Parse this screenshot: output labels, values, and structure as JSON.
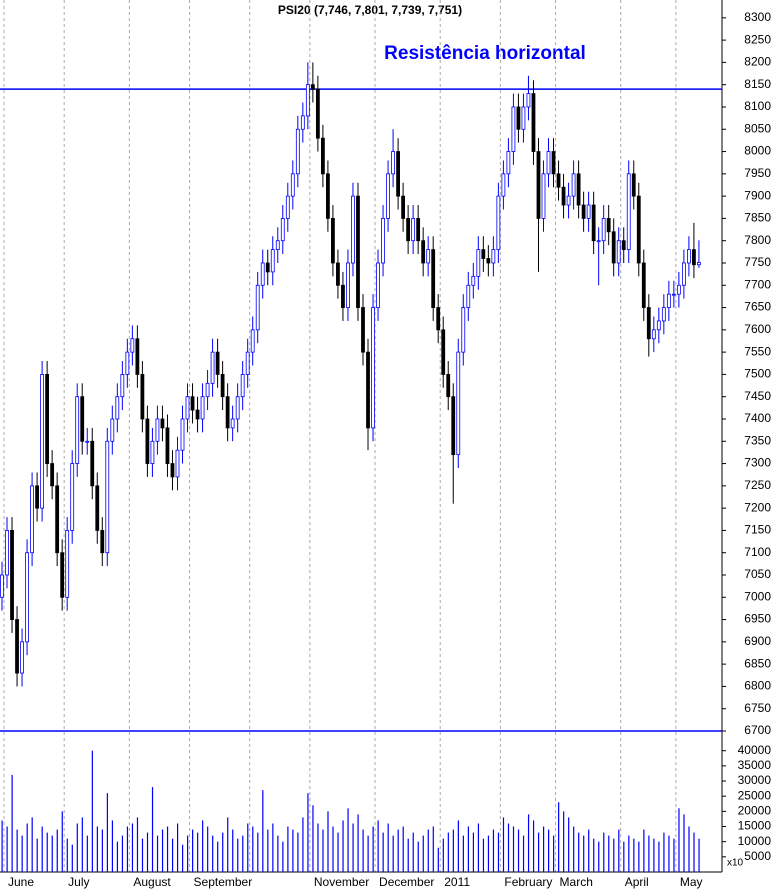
{
  "chart_data": {
    "type": "candlestick",
    "title": "PSI20 (7,746, 7,801, 7,739, 7,751)",
    "annotation": "Resistência horizontal",
    "up_color": "#0000ff",
    "down_color": "#000000",
    "open": [
      7000,
      7050,
      7150,
      6950,
      6830,
      6900,
      7100,
      7250,
      7200,
      7500,
      7300,
      7250,
      7100,
      7000,
      7150,
      7300,
      7450,
      7350,
      7350,
      7250,
      7150,
      7100,
      7350,
      7400,
      7450,
      7500,
      7550,
      7580,
      7500,
      7400,
      7300,
      7350,
      7400,
      7380,
      7300,
      7270,
      7330,
      7400,
      7450,
      7420,
      7400,
      7450,
      7480,
      7550,
      7500,
      7450,
      7380,
      7400,
      7450,
      7500,
      7550,
      7600,
      7700,
      7750,
      7730,
      7780,
      7800,
      7850,
      7900,
      7950,
      8050,
      8080,
      8150,
      8140,
      8030,
      7950,
      7850,
      7750,
      7700,
      7650,
      7750,
      7900,
      7650,
      7550,
      7380,
      7650,
      7750,
      7850,
      7950,
      8000,
      7900,
      7850,
      7800,
      7850,
      7800,
      7750,
      7780,
      7650,
      7600,
      7500,
      7450,
      7320,
      7550,
      7650,
      7700,
      7720,
      7780,
      7760,
      7750,
      7780,
      7900,
      7950,
      8000,
      8100,
      8050,
      8100,
      8130,
      8000,
      7850,
      7950,
      8000,
      7950,
      7920,
      7880,
      7900,
      7950,
      7880,
      7850,
      7880,
      7800,
      7800,
      7850,
      7820,
      7750,
      7800,
      7780,
      7950,
      7900,
      7750,
      7650,
      7580,
      7600,
      7620,
      7650,
      7680,
      7680,
      7700,
      7750,
      7780,
      7746
    ],
    "high": [
      7080,
      7180,
      7180,
      6980,
      6930,
      7130,
      7280,
      7280,
      7530,
      7530,
      7330,
      7280,
      7130,
      7180,
      7330,
      7480,
      7480,
      7380,
      7380,
      7280,
      7180,
      7380,
      7430,
      7480,
      7530,
      7580,
      7610,
      7610,
      7530,
      7430,
      7380,
      7430,
      7430,
      7410,
      7330,
      7360,
      7430,
      7480,
      7480,
      7450,
      7480,
      7510,
      7580,
      7580,
      7530,
      7480,
      7430,
      7480,
      7530,
      7580,
      7630,
      7730,
      7780,
      7780,
      7810,
      7830,
      7880,
      7930,
      7980,
      8080,
      8110,
      8200,
      8200,
      8170,
      8060,
      7980,
      7880,
      7780,
      7730,
      7780,
      7930,
      7930,
      7680,
      7580,
      7680,
      7780,
      7880,
      7980,
      8050,
      8030,
      7930,
      7880,
      7880,
      7880,
      7830,
      7810,
      7810,
      7680,
      7630,
      7530,
      7480,
      7580,
      7680,
      7730,
      7750,
      7810,
      7810,
      7790,
      7810,
      7930,
      7980,
      8030,
      8130,
      8130,
      8130,
      8170,
      8160,
      8030,
      7980,
      8030,
      8030,
      7980,
      7950,
      7930,
      7980,
      7980,
      7910,
      7910,
      7910,
      7830,
      7880,
      7880,
      7850,
      7830,
      7830,
      7980,
      7980,
      7930,
      7780,
      7680,
      7630,
      7650,
      7680,
      7710,
      7710,
      7730,
      7780,
      7810,
      7840,
      7801
    ],
    "low": [
      6970,
      7020,
      6920,
      6800,
      6800,
      6870,
      7070,
      7170,
      7170,
      7270,
      7220,
      7070,
      6970,
      6970,
      7120,
      7270,
      7320,
      7320,
      7220,
      7120,
      7070,
      7070,
      7320,
      7370,
      7420,
      7470,
      7520,
      7470,
      7370,
      7270,
      7270,
      7320,
      7350,
      7270,
      7240,
      7240,
      7300,
      7370,
      7390,
      7370,
      7370,
      7420,
      7450,
      7470,
      7420,
      7350,
      7350,
      7370,
      7420,
      7470,
      7520,
      7570,
      7670,
      7700,
      7700,
      7750,
      7770,
      7820,
      7870,
      7920,
      8020,
      8050,
      8110,
      8000,
      7920,
      7820,
      7720,
      7670,
      7620,
      7620,
      7720,
      7620,
      7520,
      7330,
      7350,
      7620,
      7720,
      7820,
      7920,
      7870,
      7820,
      7770,
      7770,
      7770,
      7720,
      7720,
      7620,
      7570,
      7470,
      7420,
      7210,
      7290,
      7520,
      7620,
      7670,
      7690,
      7730,
      7720,
      7720,
      7750,
      7870,
      7920,
      7970,
      8020,
      8020,
      8070,
      7970,
      7730,
      7820,
      7920,
      7920,
      7890,
      7850,
      7850,
      7870,
      7850,
      7820,
      7820,
      7770,
      7700,
      7770,
      7790,
      7720,
      7720,
      7750,
      7750,
      7870,
      7720,
      7620,
      7540,
      7550,
      7570,
      7590,
      7620,
      7650,
      7650,
      7670,
      7720,
      7716,
      7739
    ],
    "close": [
      7050,
      7150,
      6950,
      6830,
      6900,
      7100,
      7250,
      7200,
      7500,
      7300,
      7250,
      7100,
      7000,
      7150,
      7300,
      7450,
      7350,
      7350,
      7250,
      7150,
      7100,
      7350,
      7400,
      7450,
      7500,
      7550,
      7580,
      7500,
      7400,
      7300,
      7350,
      7400,
      7380,
      7300,
      7270,
      7330,
      7400,
      7450,
      7420,
      7400,
      7450,
      7480,
      7550,
      7500,
      7450,
      7380,
      7400,
      7450,
      7500,
      7550,
      7600,
      7700,
      7750,
      7730,
      7780,
      7800,
      7850,
      7900,
      7950,
      8050,
      8080,
      8150,
      8140,
      8030,
      7950,
      7850,
      7750,
      7700,
      7650,
      7750,
      7900,
      7650,
      7550,
      7380,
      7650,
      7750,
      7850,
      7950,
      8000,
      7900,
      7850,
      7800,
      7850,
      7800,
      7750,
      7780,
      7650,
      7600,
      7500,
      7450,
      7320,
      7550,
      7650,
      7700,
      7720,
      7780,
      7760,
      7750,
      7780,
      7900,
      7950,
      8000,
      8100,
      8050,
      8100,
      8130,
      8000,
      7850,
      7950,
      8000,
      7950,
      7920,
      7880,
      7900,
      7950,
      7880,
      7850,
      7880,
      7800,
      7800,
      7850,
      7820,
      7750,
      7800,
      7780,
      7950,
      7900,
      7750,
      7650,
      7580,
      7600,
      7620,
      7650,
      7680,
      7680,
      7700,
      7750,
      7780,
      7746,
      7751
    ],
    "volume": [
      17000,
      15000,
      32000,
      14000,
      12000,
      16000,
      18000,
      11000,
      15000,
      13000,
      12000,
      14000,
      20000,
      11000,
      9000,
      16000,
      18000,
      12000,
      40000,
      15000,
      14000,
      26000,
      17000,
      10000,
      12000,
      15000,
      16000,
      18000,
      11000,
      13000,
      28000,
      12000,
      14000,
      15000,
      11000,
      16000,
      9000,
      12000,
      14000,
      13000,
      17000,
      15000,
      12000,
      10000,
      13000,
      18000,
      14000,
      11000,
      12000,
      16000,
      15000,
      13000,
      27000,
      14000,
      16000,
      12000,
      10000,
      15000,
      14000,
      13000,
      18000,
      26000,
      22000,
      16000,
      14000,
      20000,
      15000,
      13000,
      17000,
      21000,
      16000,
      19000,
      14000,
      12000,
      15000,
      17000,
      13000,
      16000,
      12000,
      14000,
      15000,
      11000,
      13000,
      10000,
      12000,
      14000,
      15000,
      8000,
      11000,
      13000,
      14000,
      17000,
      12000,
      15000,
      13000,
      16000,
      11000,
      12000,
      14000,
      13000,
      18000,
      16000,
      15000,
      14000,
      12000,
      19000,
      17000,
      13000,
      15000,
      14000,
      12000,
      23000,
      20000,
      18000,
      15000,
      13000,
      12000,
      14000,
      11000,
      10000,
      13000,
      12000,
      11000,
      14000,
      10000,
      12000,
      11000,
      10000,
      14000,
      12000,
      11000,
      10000,
      13000,
      12000,
      11000,
      21000,
      19000,
      15000,
      13000,
      11000
    ],
    "volume_color": "#0000ff",
    "volume_unit_label": "x10",
    "hlines": [
      8140,
      6700
    ],
    "hline_color": "#0000ff",
    "ylim": [
      6700,
      8340
    ],
    "yticks": [
      6700,
      6750,
      6800,
      6850,
      6900,
      6950,
      7000,
      7050,
      7100,
      7150,
      7200,
      7250,
      7300,
      7350,
      7400,
      7450,
      7500,
      7550,
      7600,
      7650,
      7700,
      7750,
      7800,
      7850,
      7900,
      7950,
      8000,
      8050,
      8100,
      8150,
      8200,
      8250,
      8300
    ],
    "vlim": [
      0,
      46500
    ],
    "vticks": [
      5000,
      10000,
      15000,
      20000,
      25000,
      30000,
      35000,
      40000
    ],
    "xlim": [
      0,
      144
    ],
    "xticks": [
      {
        "value": 1,
        "label": "June"
      },
      {
        "value": 13,
        "label": "July"
      },
      {
        "value": 26,
        "label": "August"
      },
      {
        "value": 38,
        "label": "September"
      },
      {
        "value": 50,
        "label": null
      },
      {
        "value": 62,
        "label": "November"
      },
      {
        "value": 75,
        "label": "December"
      },
      {
        "value": 88,
        "label": "2011"
      },
      {
        "value": 100,
        "label": "February"
      },
      {
        "value": 111,
        "label": "March"
      },
      {
        "value": 124,
        "label": "April"
      },
      {
        "value": 135,
        "label": "May"
      }
    ],
    "grid": true
  }
}
